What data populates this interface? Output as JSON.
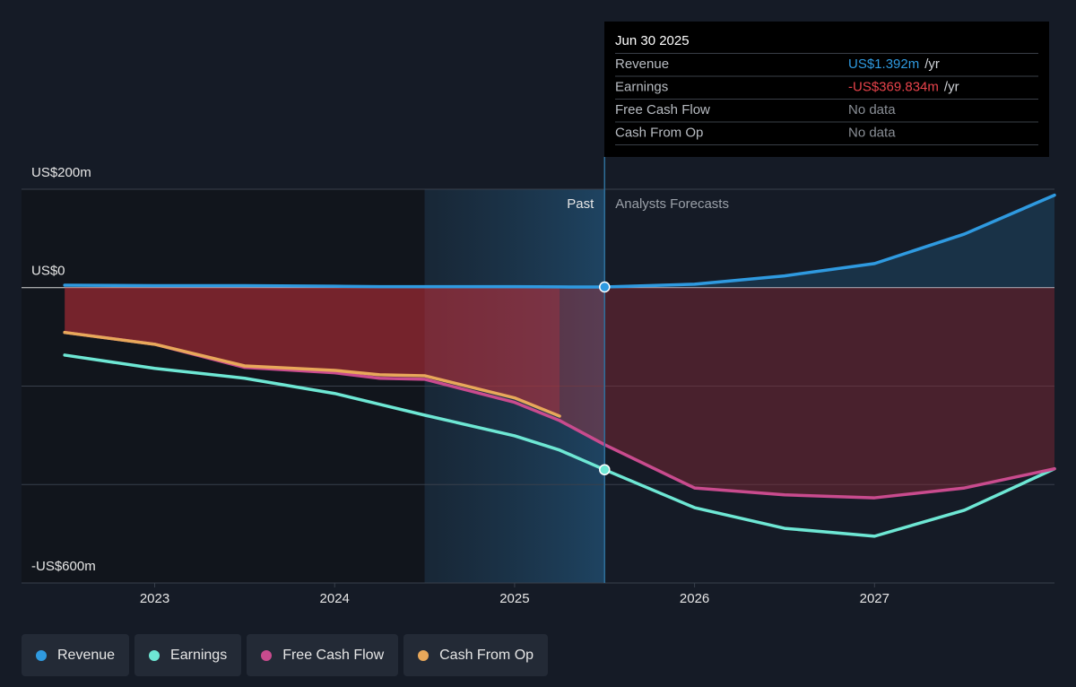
{
  "chart_data": {
    "type": "line",
    "x": [
      2022.5,
      2023,
      2023.5,
      2024,
      2024.25,
      2024.5,
      2025,
      2025.25,
      2025.5,
      2026,
      2026.5,
      2027,
      2027.5,
      2028
    ],
    "series": [
      {
        "name": "Revenue",
        "color": "#2f9ae0",
        "values": [
          5,
          4,
          4,
          3,
          2,
          2,
          2,
          1.5,
          1.392,
          7,
          24,
          49,
          109,
          188
        ]
      },
      {
        "name": "Earnings",
        "color": "#6ee7d4",
        "values": [
          -137,
          -164,
          -184,
          -215,
          -237,
          -259,
          -301,
          -330,
          -369.834,
          -447,
          -489,
          -505,
          -452,
          -368
        ]
      },
      {
        "name": "Free Cash Flow",
        "color": "#c94b8e",
        "values": [
          -91,
          -115,
          -162,
          -173,
          -184,
          -186,
          -233,
          -270,
          -319,
          -407,
          -421,
          -427,
          -407,
          -368
        ]
      },
      {
        "name": "Cash From Op",
        "color": "#e8a85a",
        "values": [
          -91,
          -115,
          -159,
          -168,
          -177,
          -179,
          -224,
          -261,
          null,
          null,
          null,
          null,
          null,
          null
        ]
      }
    ],
    "xlim": [
      2022.26,
      2028.0
    ],
    "xticks": [
      2023,
      2024,
      2025,
      2026,
      2027
    ],
    "ylim": [
      -600,
      200
    ],
    "yticks": [
      {
        "value": 200,
        "label": "US$200m"
      },
      {
        "value": 0,
        "label": "US$0"
      },
      {
        "value": -200,
        "label": null
      },
      {
        "value": -400,
        "label": null
      },
      {
        "value": -600,
        "label": "-US$600m"
      }
    ],
    "grid": true,
    "highlight_start": 2024.5,
    "divider_x": 2025.5,
    "past_label": "Past",
    "forecast_label": "Analysts Forecasts",
    "tooltip": {
      "title": "Jun 30 2025",
      "rows": [
        {
          "label": "Revenue",
          "value": "US$1.392m",
          "unit": "/yr",
          "color": "#2f9ae0"
        },
        {
          "label": "Earnings",
          "value": "-US$369.834m",
          "unit": "/yr",
          "color": "#e8434b"
        },
        {
          "label": "Free Cash Flow",
          "value": "No data"
        },
        {
          "label": "Cash From Op",
          "value": "No data"
        }
      ]
    }
  }
}
